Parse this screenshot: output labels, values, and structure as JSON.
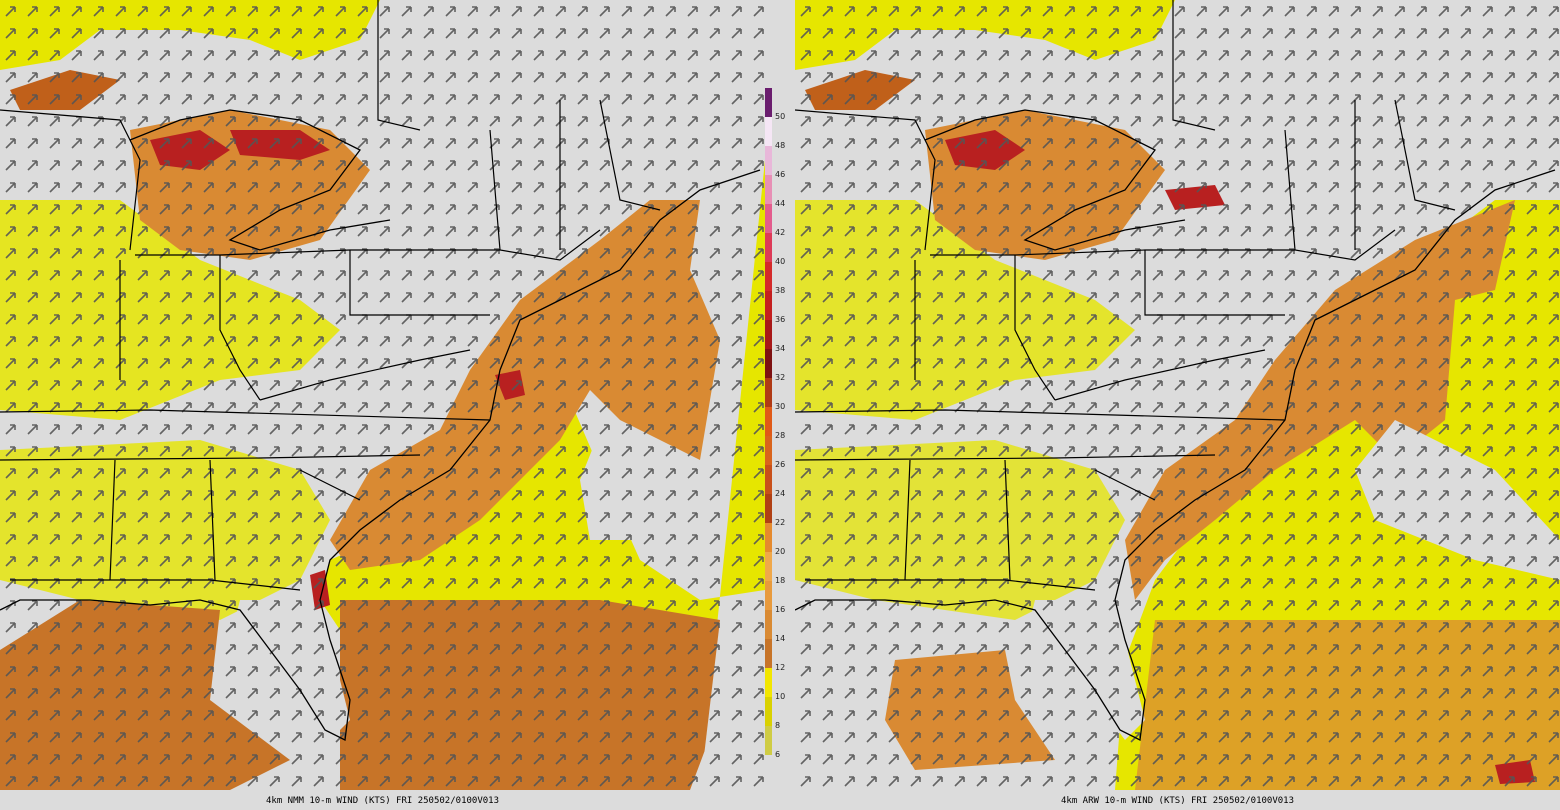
{
  "panels": [
    {
      "id": "left",
      "caption": "4km NMM 10-m WIND (KTS) FRI 250502/0100V013"
    },
    {
      "id": "right",
      "caption": "4km ARW 10-m WIND (KTS) FRI 250502/0100V013"
    }
  ],
  "colorbar": {
    "ticks": [
      "50",
      "48",
      "46",
      "44",
      "42",
      "40",
      "38",
      "36",
      "34",
      "32",
      "30",
      "28",
      "26",
      "24",
      "22",
      "20",
      "18",
      "16",
      "14",
      "12",
      "10",
      "8",
      "6"
    ],
    "colors": [
      "#6a1d6e",
      "#f5e6f5",
      "#e8b7d9",
      "#e78fb5",
      "#e35c8d",
      "#dd3a57",
      "#d42a2a",
      "#c41f1f",
      "#a81818",
      "#7d1111",
      "#b03a15",
      "#e05a18",
      "#d9641c",
      "#c8501a",
      "#b04014",
      "#e58a2e",
      "#f0a84a",
      "#e89a3c",
      "#d98a33",
      "#c77428",
      "#f2e600",
      "#d9d100",
      "#cfcc44"
    ]
  },
  "map_colors": {
    "land_calm": "#dcdcdc",
    "yellow": "#e6e600",
    "olive": "#cccc33",
    "orange": "#d98a33",
    "dark_orange": "#c0601a",
    "red": "#b82020",
    "arrow": "#555555",
    "border": "#000000"
  }
}
